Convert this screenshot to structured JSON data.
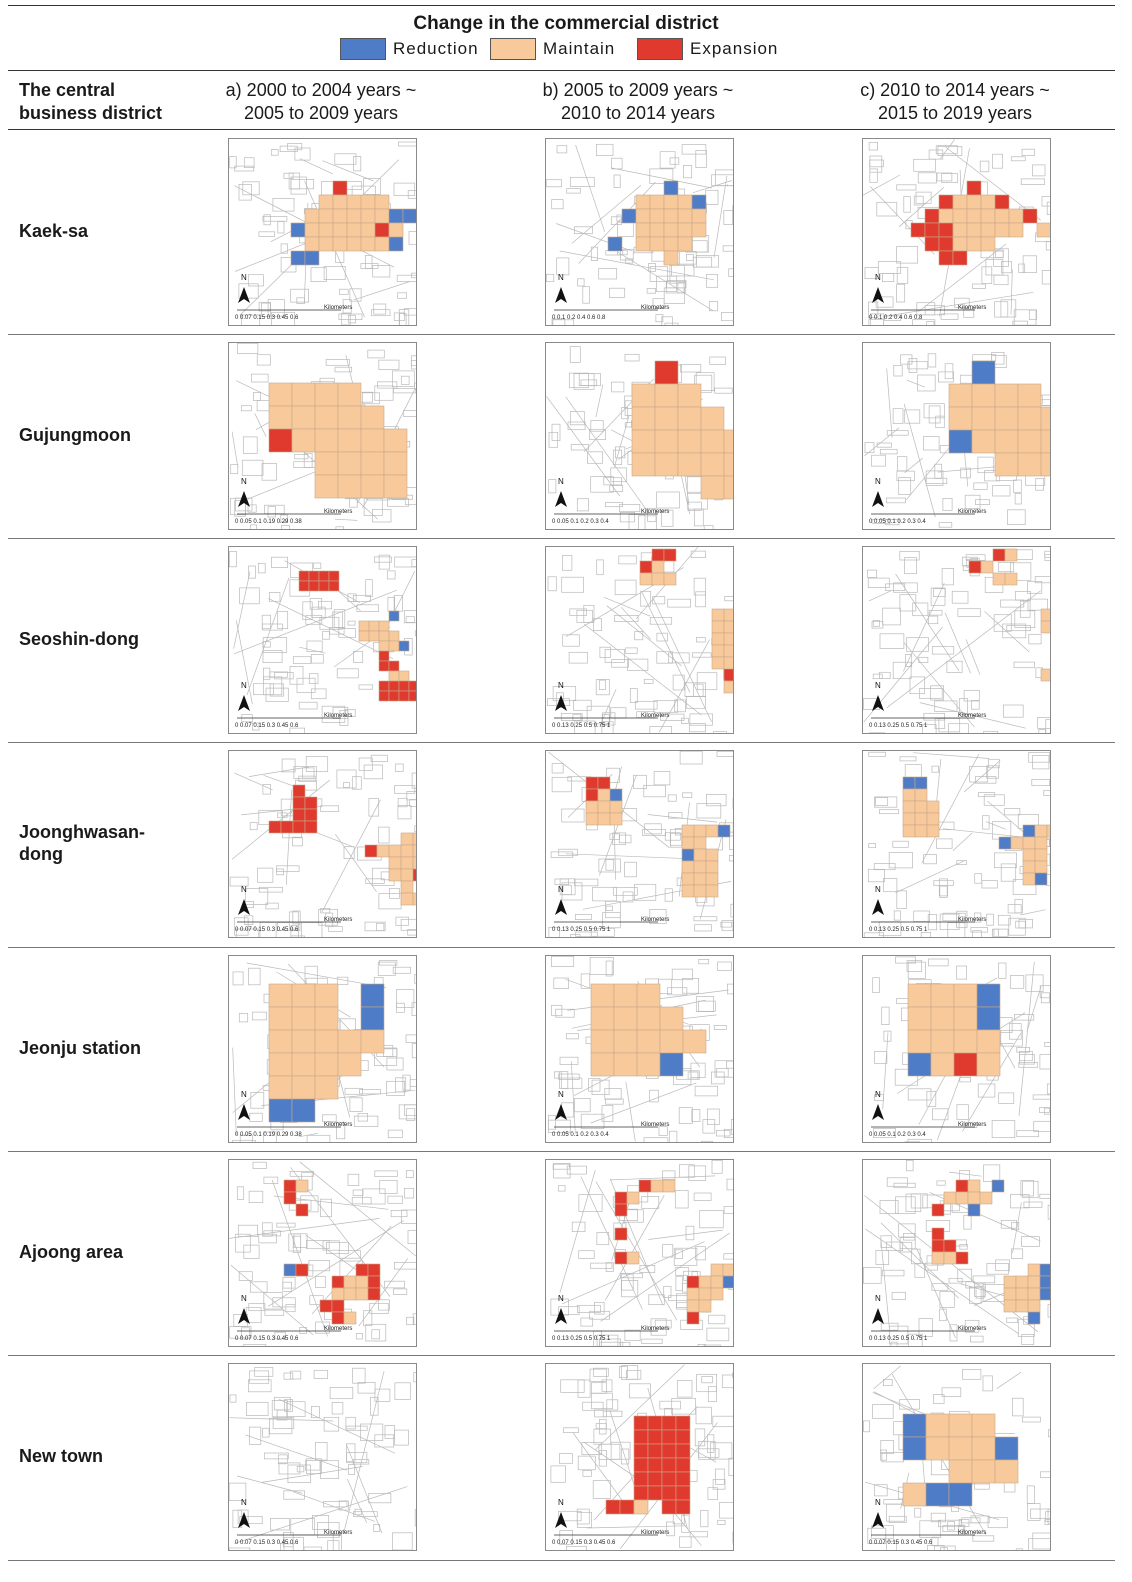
{
  "legend": {
    "title": "Change in the commercial district",
    "items": [
      {
        "label": "Reduction",
        "color": "#4f7cc7"
      },
      {
        "label": "Maintain",
        "color": "#f7c99b"
      },
      {
        "label": "Expansion",
        "color": "#e0392e"
      }
    ]
  },
  "header": {
    "row_label": [
      "The central",
      "business district"
    ],
    "periods": [
      [
        "a) 2000 to 2004 years ~",
        "2005 to 2009 years"
      ],
      [
        "b) 2005 to 2009 years ~",
        "2010 to 2014 years"
      ],
      [
        "c) 2010 to 2014 years ~",
        "2015 to 2019 years"
      ]
    ]
  },
  "map_labels": {
    "north": "N",
    "unit": "Kilometers"
  },
  "rows": [
    {
      "name": [
        "Kaek-sa"
      ],
      "scale": [
        "0 0.07 0.15  0.3   0.45  0.6",
        "0  0.1 0.2    0.4     0.6     0.8",
        "0  0.1 0.2       0.4       0.6   0.8"
      ]
    },
    {
      "name": [
        "Gujungmoon"
      ],
      "scale": [
        "0 0.05 0.1  0.19  0.29  0.38",
        "0 0.05 0.1  0.2   0.3   0.4",
        "0 0.05 0.1  0.2   0.3   0.4"
      ]
    },
    {
      "name": [
        "Seoshin-dong"
      ],
      "scale": [
        "0 0.07 0.15  0.3  0.45  0.6",
        "0  0.13 0.25   0.5   0.75   1",
        "0  0.13 0.25   0.5   0.75   1"
      ]
    },
    {
      "name": [
        "Joonghwasan-",
        "dong"
      ],
      "scale": [
        "0 0.07 0.15  0.3  0.45  0.6",
        "0  0.13 0.25   0.5   0.75   1",
        "0  0.13 0.25   0.5   0.75   1"
      ]
    },
    {
      "name": [
        "Jeonju station"
      ],
      "scale": [
        "0 0.05 0.1  0.19  0.29  0.38",
        "0 0.05 0.1  0.2   0.3   0.4",
        "0 0.05 0.1  0.2   0.3   0.4"
      ]
    },
    {
      "name": [
        "Ajoong area"
      ],
      "scale": [
        "0 0.07 0.15  0.3  0.45  0.6",
        "0  0.13 0.25   0.5   0.75   1",
        "0  0.13 0.25   0.5   0.75   1"
      ]
    },
    {
      "name": [
        "New town"
      ],
      "scale": [
        "0 0.07 0.15  0.3   0.45  0.6",
        "0 0.07 0.15   0.3   0.45   0.6",
        "0 0.07 0.15   0.3   0.45   0.6"
      ]
    }
  ]
}
